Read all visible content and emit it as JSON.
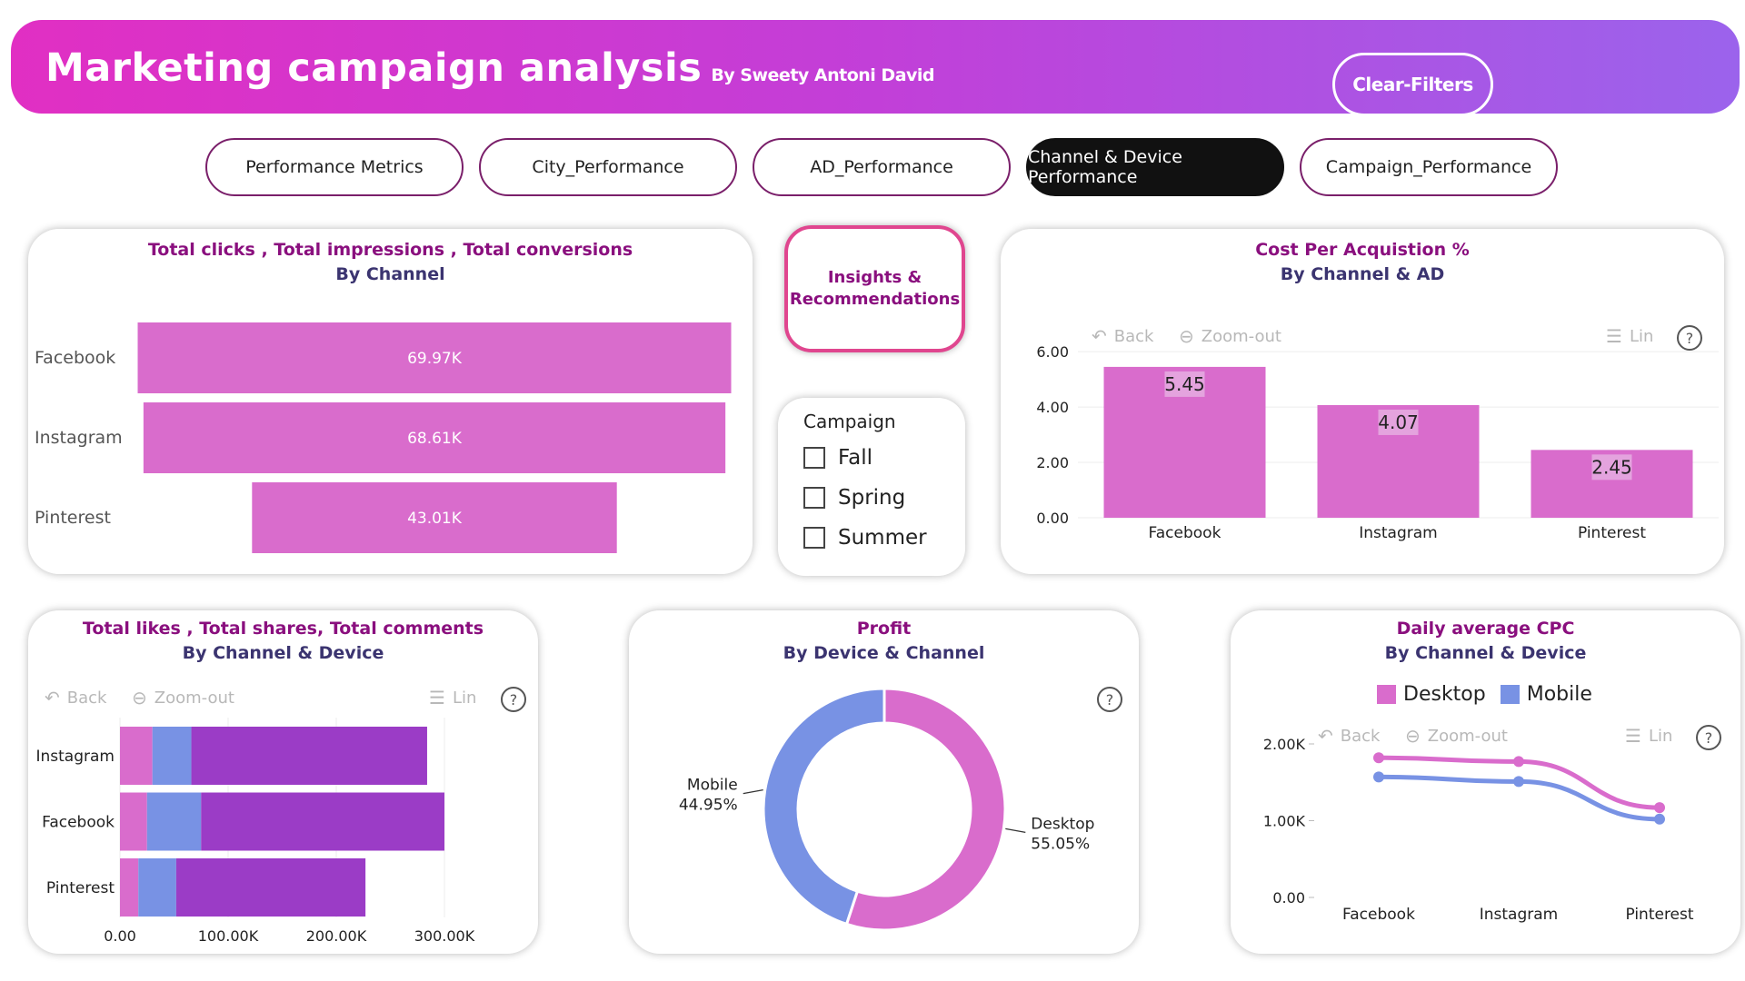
{
  "header": {
    "title": "Marketing campaign analysis",
    "byline": "By Sweety Antoni David",
    "clear_filters": "Clear-Filters"
  },
  "tabs": [
    {
      "label": "Performance Metrics",
      "active": false
    },
    {
      "label": "City_Performance",
      "active": false
    },
    {
      "label": "AD_Performance",
      "active": false
    },
    {
      "label": "Channel & Device Performance",
      "active": true
    },
    {
      "label": "Campaign_Performance",
      "active": false
    }
  ],
  "insights_button": "Insights & Recommendations",
  "campaign_slicer": {
    "title": "Campaign",
    "options": [
      "Fall",
      "Spring",
      "Summer"
    ]
  },
  "toolbar": {
    "back": "Back",
    "zoom_out": "Zoom-out",
    "lin": "Lin",
    "help": "?"
  },
  "colors": {
    "accent": "#d96ccc",
    "purple": "#9b3cc6",
    "blue": "#7892e4",
    "header_start": "#e12fc3",
    "header_end": "#9b63ec"
  },
  "funnel": {
    "title1": "Total clicks , Total impressions , Total conversions",
    "title2": "By Channel",
    "chart_data": {
      "type": "bar",
      "categories": [
        "Facebook",
        "Instagram",
        "Pinterest"
      ],
      "values": [
        69970,
        68610,
        43010
      ],
      "labels": [
        "69.97K",
        "68.61K",
        "43.01K"
      ]
    }
  },
  "cpa": {
    "title1": "Cost Per Acquistion %",
    "title2": "By Channel & AD",
    "chart_data": {
      "type": "bar",
      "categories": [
        "Facebook",
        "Instagram",
        "Pinterest"
      ],
      "values": [
        5.45,
        4.07,
        2.45
      ],
      "labels": [
        "5.45",
        "4.07",
        "2.45"
      ],
      "yticks": [
        "0.00",
        "2.00",
        "4.00",
        "6.00"
      ],
      "ylim": [
        0,
        6.3
      ]
    }
  },
  "engagement": {
    "title1": "Total likes , Total shares, Total comments",
    "title2": "By Channel & Device",
    "chart_data": {
      "type": "bar",
      "categories": [
        "Instagram",
        "Facebook",
        "Pinterest"
      ],
      "series": [
        {
          "values": [
            30000,
            25000,
            17000
          ],
          "color": "#d96ccc"
        },
        {
          "values": [
            36000,
            50000,
            35000
          ],
          "color": "#7892e4"
        },
        {
          "values": [
            218000,
            225000,
            175000
          ],
          "color": "#9b3cc6"
        }
      ],
      "xticks": [
        "0.00",
        "100.00K",
        "200.00K",
        "300.00K"
      ],
      "xlim": [
        0,
        300000
      ]
    }
  },
  "profit": {
    "title1": "Profit",
    "title2": "By Device & Channel",
    "chart_data": {
      "type": "pie",
      "slices": [
        {
          "name": "Desktop",
          "value": 55.05,
          "label": "55.05%",
          "color": "#d96ccc"
        },
        {
          "name": "Mobile",
          "value": 44.95,
          "label": "44.95%",
          "color": "#7892e4"
        }
      ]
    }
  },
  "cpc": {
    "title1": "Daily average CPC",
    "title2": "By Channel & Device",
    "chart_data": {
      "type": "line",
      "categories": [
        "Facebook",
        "Instagram",
        "Pinterest"
      ],
      "series": [
        {
          "name": "Desktop",
          "values": [
            1820,
            1770,
            1170
          ],
          "color": "#d96ccc"
        },
        {
          "name": "Mobile",
          "values": [
            1570,
            1510,
            1020
          ],
          "color": "#7892e4"
        }
      ],
      "yticks": [
        "0.00",
        "1.00K",
        "2.00K"
      ],
      "ylim": [
        0,
        2000
      ]
    }
  }
}
